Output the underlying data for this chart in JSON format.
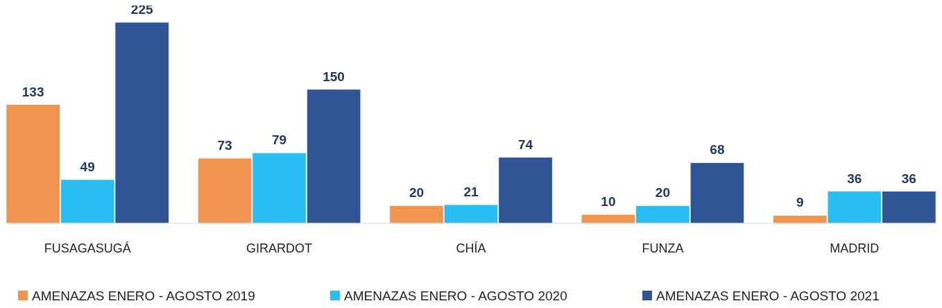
{
  "chart_data": {
    "type": "bar",
    "categories": [
      "FUSAGASUGÁ",
      "GIRARDOT",
      "CHÍA",
      "FUNZA",
      "MADRID"
    ],
    "series": [
      {
        "name": "AMENAZAS ENERO - AGOSTO 2019",
        "color": "#f0954f",
        "values": [
          133,
          73,
          20,
          10,
          9
        ]
      },
      {
        "name": "AMENAZAS ENERO - AGOSTO 2020",
        "color": "#29bdf2",
        "values": [
          49,
          79,
          21,
          20,
          36
        ]
      },
      {
        "name": "AMENAZAS ENERO - AGOSTO 2021",
        "color": "#2f5597",
        "values": [
          225,
          150,
          74,
          68,
          36
        ]
      }
    ],
    "data_labels": true,
    "legend": "bottom"
  }
}
